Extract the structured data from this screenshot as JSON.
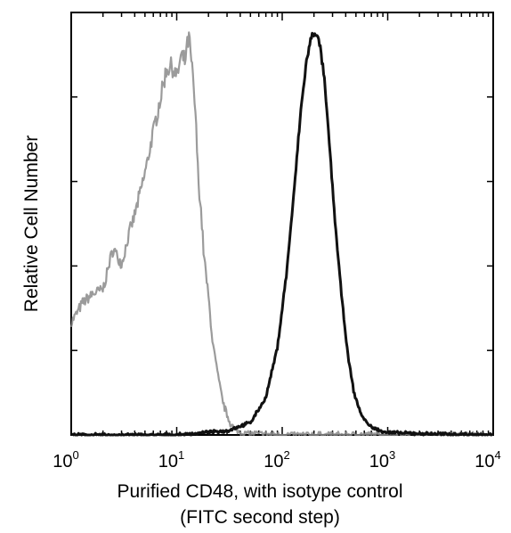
{
  "chart_data": {
    "type": "line",
    "title": "",
    "xlabel_line1": "Purified CD48, with isotype control",
    "xlabel_line2": "(FITC second step)",
    "ylabel": "Relative Cell Number",
    "x_scale": "log",
    "xlim": [
      1,
      10000
    ],
    "ylim": [
      0,
      1
    ],
    "x_ticks": [
      {
        "base": "10",
        "exp": "0",
        "value": 1
      },
      {
        "base": "10",
        "exp": "1",
        "value": 10
      },
      {
        "base": "10",
        "exp": "2",
        "value": 100
      },
      {
        "base": "10",
        "exp": "3",
        "value": 1000
      },
      {
        "base": "10",
        "exp": "4",
        "value": 10000
      }
    ],
    "grid": false,
    "legend": "none",
    "series": [
      {
        "style": "light-gray-noisy",
        "color": "#8a8a8a",
        "x": [
          1.0,
          1.3,
          1.6,
          2.0,
          2.5,
          3.0,
          3.5,
          4.0,
          5.0,
          6.0,
          7.0,
          8.0,
          9.0,
          10.0,
          11.0,
          12.0,
          13.0,
          14.0,
          15.0,
          16.0,
          17.0,
          18.0,
          20.0,
          22.0,
          25.0,
          28.0,
          32.0,
          36.0,
          40.0,
          50.0,
          100.0,
          1000.0,
          10000.0
        ],
        "y": [
          0.27,
          0.32,
          0.34,
          0.35,
          0.45,
          0.41,
          0.48,
          0.53,
          0.63,
          0.73,
          0.81,
          0.88,
          0.89,
          0.86,
          0.91,
          0.9,
          0.96,
          0.88,
          0.78,
          0.62,
          0.54,
          0.44,
          0.33,
          0.22,
          0.13,
          0.07,
          0.03,
          0.012,
          0.006,
          0.003,
          0.0,
          0.0,
          0.0
        ]
      },
      {
        "style": "dark-solid",
        "color": "#111111",
        "x": [
          1.0,
          10.0,
          30.0,
          50.0,
          70.0,
          90.0,
          110.0,
          130.0,
          150.0,
          170.0,
          190.0,
          210.0,
          230.0,
          250.0,
          280.0,
          320.0,
          370.0,
          420.0,
          480.0,
          560.0,
          650.0,
          800.0,
          1000.0,
          2000.0,
          5000.0,
          10000.0
        ],
        "y": [
          0.0,
          0.0,
          0.01,
          0.03,
          0.09,
          0.21,
          0.39,
          0.59,
          0.78,
          0.9,
          0.96,
          0.97,
          0.93,
          0.86,
          0.7,
          0.5,
          0.32,
          0.19,
          0.1,
          0.05,
          0.025,
          0.012,
          0.006,
          0.003,
          0.002,
          0.0
        ]
      }
    ]
  }
}
